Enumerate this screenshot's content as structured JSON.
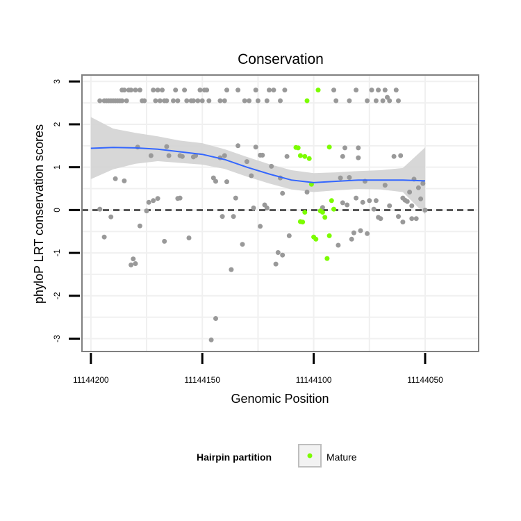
{
  "chart_data": {
    "type": "scatter",
    "title": "Conservation",
    "xlabel": "Genomic Position",
    "ylabel": "phyloP LRT conservation scores",
    "xlim": [
      11144204,
      11144026
    ],
    "ylim": [
      -3.3,
      3.15
    ],
    "x_reversed": true,
    "xticks": [
      11144200,
      11144150,
      11144100,
      11144050
    ],
    "xtick_labels": [
      "11144200",
      "11144150",
      "11144100",
      "11144050"
    ],
    "yticks": [
      3,
      2,
      1,
      0,
      -1,
      -2,
      -3
    ],
    "ytick_labels": [
      "3",
      "2",
      "1",
      "0",
      "-1",
      "-2",
      "-3"
    ],
    "reference_line": {
      "y": 0,
      "style": "dashed"
    },
    "grid": true,
    "legend": {
      "title": "Hairpin partition",
      "position": "bottom",
      "entries": [
        {
          "label": "Mature",
          "color": "#7CFC00"
        }
      ]
    },
    "colors": {
      "other": "#999999",
      "mature": "#7CFC00",
      "smooth": "#3366FF",
      "ribbon": "#D3D3D3"
    },
    "series": [
      {
        "name": "Other",
        "color": "#999999",
        "points": [
          [
            11144196,
            0.02
          ],
          [
            11144196,
            2.55
          ],
          [
            11144194,
            -0.63
          ],
          [
            11144194,
            2.55
          ],
          [
            11144193,
            2.55
          ],
          [
            11144192,
            2.55
          ],
          [
            11144191,
            -0.16
          ],
          [
            11144191,
            2.55
          ],
          [
            11144190,
            2.55
          ],
          [
            11144189,
            0.73
          ],
          [
            11144189,
            2.55
          ],
          [
            11144188,
            2.55
          ],
          [
            11144187,
            2.55
          ],
          [
            11144186,
            2.55
          ],
          [
            11144186,
            2.8
          ],
          [
            11144185,
            0.68
          ],
          [
            11144185,
            2.8
          ],
          [
            11144184,
            2.55
          ],
          [
            11144183,
            2.8
          ],
          [
            11144182,
            -1.28
          ],
          [
            11144182,
            2.8
          ],
          [
            11144181,
            -1.14
          ],
          [
            11144180,
            -1.25
          ],
          [
            11144180,
            2.8
          ],
          [
            11144179,
            1.47
          ],
          [
            11144178,
            -0.37
          ],
          [
            11144178,
            2.8
          ],
          [
            11144177,
            2.55
          ],
          [
            11144176,
            2.55
          ],
          [
            11144175,
            -0.02
          ],
          [
            11144174,
            0.18
          ],
          [
            11144173,
            1.27
          ],
          [
            11144172,
            0.22
          ],
          [
            11144172,
            2.8
          ],
          [
            11144171,
            2.55
          ],
          [
            11144170,
            0.27
          ],
          [
            11144170,
            2.8
          ],
          [
            11144169,
            2.55
          ],
          [
            11144168,
            2.8
          ],
          [
            11144167,
            -0.73
          ],
          [
            11144167,
            2.55
          ],
          [
            11144166,
            1.48
          ],
          [
            11144166,
            2.55
          ],
          [
            11144165,
            1.27
          ],
          [
            11144163,
            2.55
          ],
          [
            11144162,
            2.8
          ],
          [
            11144161,
            0.27
          ],
          [
            11144161,
            2.55
          ],
          [
            11144160,
            0.28
          ],
          [
            11144160,
            1.27
          ],
          [
            11144159,
            1.25
          ],
          [
            11144158,
            2.8
          ],
          [
            11144157,
            2.55
          ],
          [
            11144156,
            -0.65
          ],
          [
            11144155,
            2.55
          ],
          [
            11144154,
            1.24
          ],
          [
            11144154,
            2.55
          ],
          [
            11144153,
            1.27
          ],
          [
            11144152,
            2.55
          ],
          [
            11144151,
            2.8
          ],
          [
            11144150,
            2.55
          ],
          [
            11144149,
            2.8
          ],
          [
            11144148,
            2.8
          ],
          [
            11144147,
            2.55
          ],
          [
            11144146,
            -3.03
          ],
          [
            11144145,
            0.75
          ],
          [
            11144144,
            0.67
          ],
          [
            11144144,
            -2.53
          ],
          [
            11144142,
            1.22
          ],
          [
            11144142,
            2.55
          ],
          [
            11144141,
            -0.15
          ],
          [
            11144140,
            1.27
          ],
          [
            11144140,
            2.55
          ],
          [
            11144139,
            0.66
          ],
          [
            11144139,
            2.8
          ],
          [
            11144137,
            -1.39
          ],
          [
            11144136,
            -0.15
          ],
          [
            11144135,
            0.28
          ],
          [
            11144134,
            1.5
          ],
          [
            11144134,
            2.8
          ],
          [
            11144132,
            -0.8
          ],
          [
            11144131,
            2.55
          ],
          [
            11144130,
            1.13
          ],
          [
            11144129,
            2.55
          ],
          [
            11144128,
            0.8
          ],
          [
            11144127,
            0.05
          ],
          [
            11144126,
            2.8
          ],
          [
            11144126,
            1.47
          ],
          [
            11144125,
            2.55
          ],
          [
            11144124,
            -0.38
          ],
          [
            11144124,
            1.28
          ],
          [
            11144123,
            1.28
          ],
          [
            11144122,
            0.12
          ],
          [
            11144121,
            2.55
          ],
          [
            11144121,
            0.05
          ],
          [
            11144120,
            2.8
          ],
          [
            11144119,
            1.02
          ],
          [
            11144118,
            2.8
          ],
          [
            11144117,
            -1.26
          ],
          [
            11144116,
            -0.99
          ],
          [
            11144115,
            0.75
          ],
          [
            11144115,
            2.55
          ],
          [
            11144114,
            0.39
          ],
          [
            11144114,
            -1.05
          ],
          [
            11144113,
            2.8
          ],
          [
            11144112,
            1.25
          ],
          [
            11144111,
            -0.6
          ],
          [
            11144103,
            0.42
          ],
          [
            11144096,
            0.06
          ],
          [
            11144091,
            2.8
          ],
          [
            11144090,
            2.55
          ],
          [
            11144089,
            -0.82
          ],
          [
            11144088,
            0.75
          ],
          [
            11144087,
            0.17
          ],
          [
            11144087,
            1.25
          ],
          [
            11144086,
            1.45
          ],
          [
            11144085,
            0.12
          ],
          [
            11144084,
            0.76
          ],
          [
            11144084,
            2.55
          ],
          [
            11144083,
            -0.68
          ],
          [
            11144082,
            -0.53
          ],
          [
            11144081,
            2.8
          ],
          [
            11144081,
            0.28
          ],
          [
            11144080,
            1.45
          ],
          [
            11144080,
            1.22
          ],
          [
            11144079,
            -0.48
          ],
          [
            11144078,
            0.18
          ],
          [
            11144077,
            0.67
          ],
          [
            11144076,
            -0.55
          ],
          [
            11144076,
            2.55
          ],
          [
            11144075,
            0.22
          ],
          [
            11144074,
            2.8
          ],
          [
            11144073,
            0.02
          ],
          [
            11144072,
            0.22
          ],
          [
            11144072,
            2.55
          ],
          [
            11144071,
            -0.17
          ],
          [
            11144071,
            2.8
          ],
          [
            11144070,
            -0.2
          ],
          [
            11144069,
            2.55
          ],
          [
            11144068,
            0.58
          ],
          [
            11144068,
            2.8
          ],
          [
            11144067,
            2.63
          ],
          [
            11144066,
            0.1
          ],
          [
            11144066,
            2.55
          ],
          [
            11144064,
            1.25
          ],
          [
            11144063,
            2.8
          ],
          [
            11144062,
            -0.15
          ],
          [
            11144062,
            2.55
          ],
          [
            11144061,
            1.27
          ],
          [
            11144060,
            -0.28
          ],
          [
            11144060,
            0.28
          ],
          [
            11144059,
            0.23
          ],
          [
            11144058,
            0.2
          ],
          [
            11144057,
            0.42
          ],
          [
            11144056,
            0.1
          ],
          [
            11144056,
            -0.2
          ],
          [
            11144055,
            0.72
          ],
          [
            11144054,
            -0.2
          ],
          [
            11144053,
            0.52
          ],
          [
            11144052,
            0.26
          ],
          [
            11144051,
            0.62
          ],
          [
            11144050,
            0.0
          ]
        ]
      },
      {
        "name": "Mature",
        "color": "#7CFC00",
        "points": [
          [
            11144108,
            1.46
          ],
          [
            11144107,
            1.45
          ],
          [
            11144106,
            -0.27
          ],
          [
            11144106,
            1.27
          ],
          [
            11144105,
            -0.28
          ],
          [
            11144104,
            -0.05
          ],
          [
            11144104,
            1.25
          ],
          [
            11144103,
            2.55
          ],
          [
            11144102,
            1.2
          ],
          [
            11144101,
            0.6
          ],
          [
            11144100,
            -0.63
          ],
          [
            11144099,
            -0.68
          ],
          [
            11144098,
            2.8
          ],
          [
            11144097,
            -0.02
          ],
          [
            11144096,
            -0.05
          ],
          [
            11144095,
            -0.17
          ],
          [
            11144094,
            -1.13
          ],
          [
            11144093,
            -0.6
          ],
          [
            11144093,
            1.47
          ],
          [
            11144092,
            0.22
          ],
          [
            11144091,
            0.02
          ]
        ]
      }
    ],
    "smooth": [
      {
        "x": 11144200,
        "y": 1.44,
        "lo": 0.72,
        "hi": 2.17
      },
      {
        "x": 11144190,
        "y": 1.46,
        "lo": 0.95,
        "hi": 1.9
      },
      {
        "x": 11144180,
        "y": 1.45,
        "lo": 1.08,
        "hi": 1.8
      },
      {
        "x": 11144170,
        "y": 1.42,
        "lo": 1.14,
        "hi": 1.72
      },
      {
        "x": 11144160,
        "y": 1.36,
        "lo": 1.1,
        "hi": 1.62
      },
      {
        "x": 11144150,
        "y": 1.3,
        "lo": 1.06,
        "hi": 1.56
      },
      {
        "x": 11144140,
        "y": 1.18,
        "lo": 0.96,
        "hi": 1.42
      },
      {
        "x": 11144130,
        "y": 1.0,
        "lo": 0.78,
        "hi": 1.24
      },
      {
        "x": 11144120,
        "y": 0.84,
        "lo": 0.62,
        "hi": 1.07
      },
      {
        "x": 11144110,
        "y": 0.7,
        "lo": 0.48,
        "hi": 0.93
      },
      {
        "x": 11144100,
        "y": 0.64,
        "lo": 0.42,
        "hi": 0.86
      },
      {
        "x": 11144090,
        "y": 0.67,
        "lo": 0.46,
        "hi": 0.88
      },
      {
        "x": 11144080,
        "y": 0.7,
        "lo": 0.49,
        "hi": 0.91
      },
      {
        "x": 11144070,
        "y": 0.7,
        "lo": 0.48,
        "hi": 0.93
      },
      {
        "x": 11144060,
        "y": 0.7,
        "lo": 0.42,
        "hi": 0.98
      },
      {
        "x": 11144050,
        "y": 0.68,
        "lo": -0.1,
        "hi": 1.46
      }
    ]
  }
}
